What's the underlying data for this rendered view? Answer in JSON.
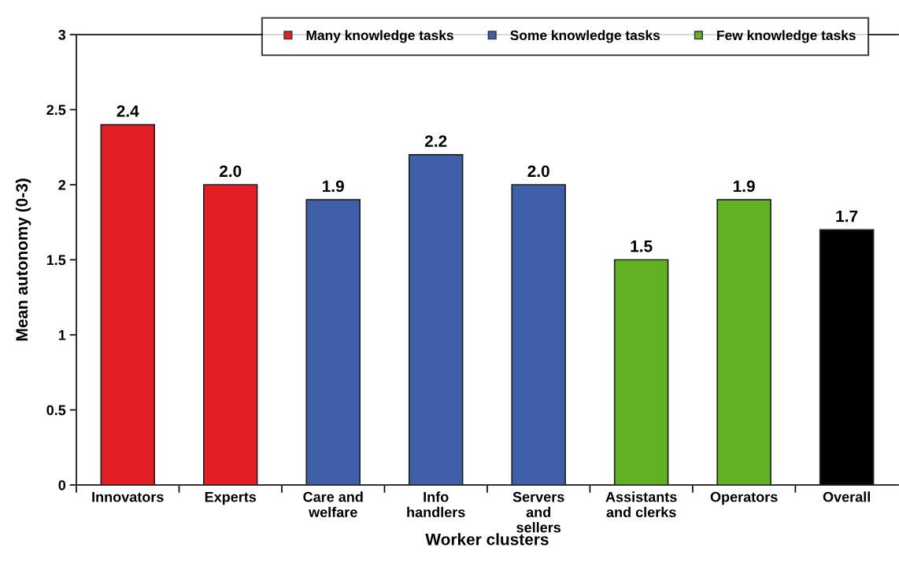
{
  "chart_data": {
    "type": "bar",
    "xlabel": "Worker clusters",
    "ylabel": "Mean autonomy (0-3)",
    "categories": [
      "Innovators",
      "Experts",
      "Care and\nwelfare",
      "Info\nhandlers",
      "Servers\nand\nsellers",
      "Assistants\nand clerks",
      "Operators",
      "Overall"
    ],
    "series": [
      {
        "name": "Many knowledge tasks",
        "color": "#e31e24",
        "values": [
          2.4,
          2.0,
          null,
          null,
          null,
          null,
          null,
          null
        ],
        "value_labels": [
          "2.4",
          "2.0",
          null,
          null,
          null,
          null,
          null,
          null
        ]
      },
      {
        "name": "Some knowledge tasks",
        "color": "#3f5fa8",
        "values": [
          null,
          null,
          1.9,
          2.2,
          2.0,
          null,
          null,
          null
        ],
        "value_labels": [
          null,
          null,
          "1.9",
          "2.2",
          "2.0",
          null,
          null,
          null
        ]
      },
      {
        "name": "Few knowledge tasks",
        "color": "#62b024",
        "values": [
          null,
          null,
          null,
          null,
          null,
          1.5,
          1.9,
          null
        ],
        "value_labels": [
          null,
          null,
          null,
          null,
          null,
          "1.5",
          "1.9",
          null
        ]
      },
      {
        "color": "#000000",
        "values": [
          null,
          null,
          null,
          null,
          null,
          null,
          null,
          1.7
        ],
        "value_labels": [
          null,
          null,
          null,
          null,
          null,
          null,
          null,
          "1.7"
        ]
      }
    ],
    "ylim": [
      0,
      3
    ],
    "yticks": [
      0,
      0.5,
      1,
      1.5,
      2,
      2.5,
      3
    ],
    "grid": false,
    "legend": "top"
  }
}
